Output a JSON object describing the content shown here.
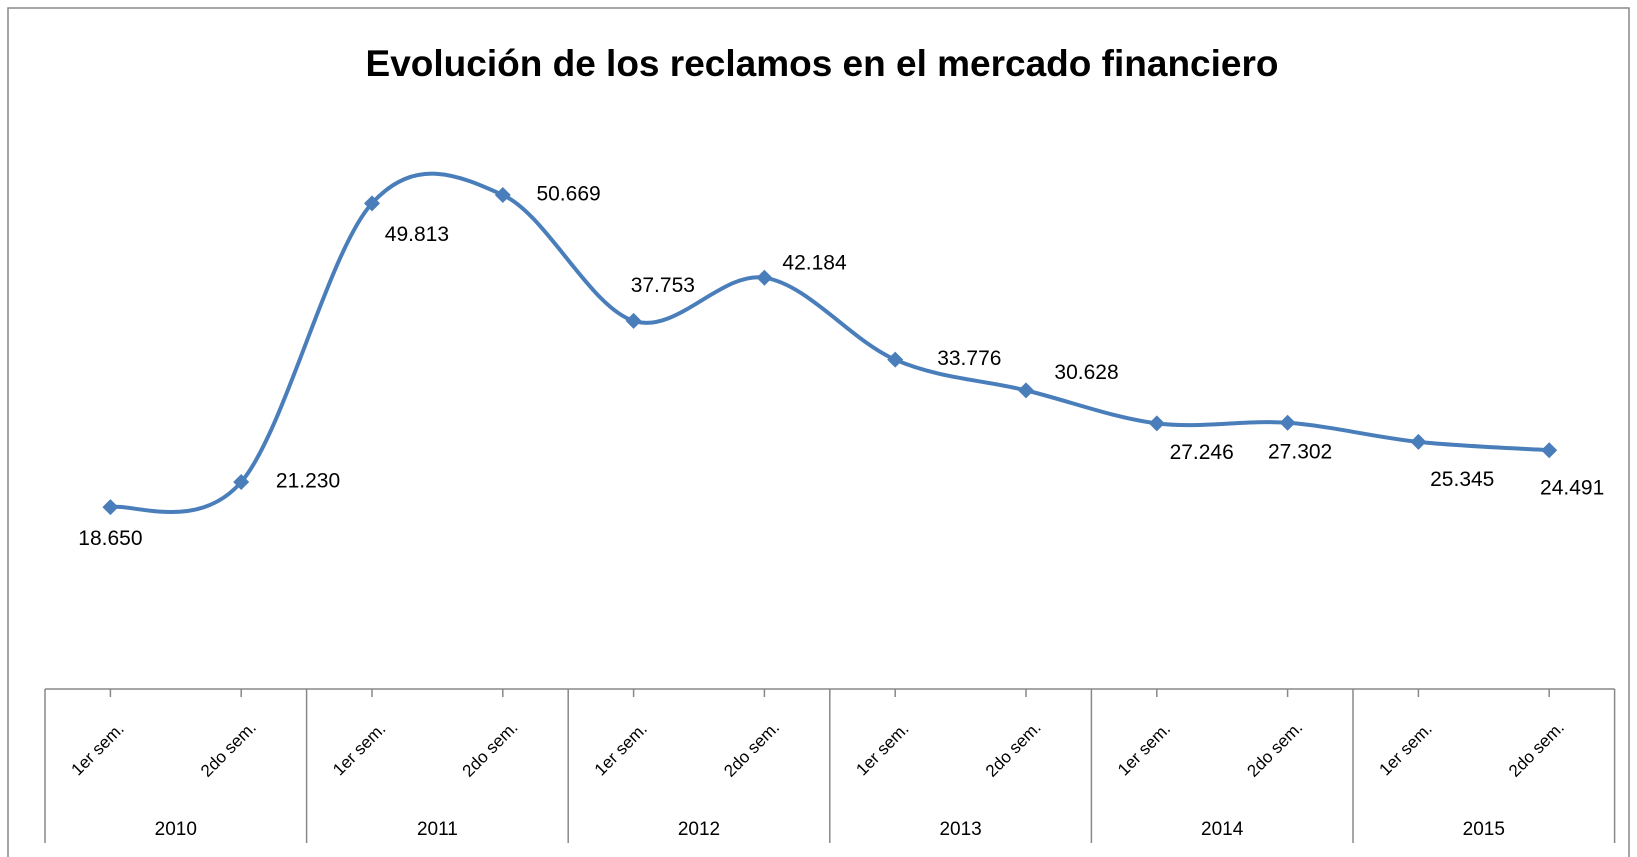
{
  "chart_data": {
    "type": "line",
    "title": "Evolución de los reclamos en el mercado financiero",
    "categories": [
      "1er sem.",
      "2do sem.",
      "1er sem.",
      "2do sem.",
      "1er sem.",
      "2do sem.",
      "1er sem.",
      "2do sem.",
      "1er sem.",
      "2do sem.",
      "1er sem.",
      "2do sem."
    ],
    "groups": [
      "2010",
      "2011",
      "2012",
      "2013",
      "2014",
      "2015"
    ],
    "values": [
      18650,
      21230,
      49813,
      50669,
      37753,
      42184,
      33776,
      30628,
      27246,
      27302,
      25345,
      24491
    ],
    "value_labels": [
      "18.650",
      "21.230",
      "49.813",
      "50.669",
      "37.753",
      "42.184",
      "33.776",
      "30.628",
      "27.246",
      "27.302",
      "25.345",
      "24.491"
    ],
    "color": "#4a7ebb",
    "ylim": [
      0,
      60000
    ]
  }
}
